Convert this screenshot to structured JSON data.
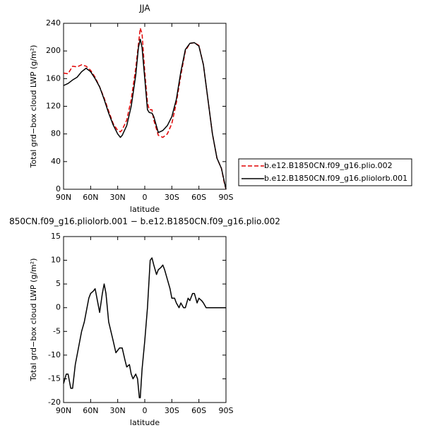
{
  "chart_data": [
    {
      "type": "line",
      "title": "JJA",
      "x_label": "latitude",
      "y_label": "Total grd−box cloud LWP (g/m²)",
      "x": [
        90,
        85,
        80,
        75,
        70,
        65,
        60,
        55,
        50,
        45,
        40,
        35,
        30,
        27,
        25,
        20,
        15,
        10,
        7,
        5,
        3,
        0,
        -3,
        -5,
        -8,
        -10,
        -15,
        -20,
        -25,
        -30,
        -35,
        -40,
        -45,
        -50,
        -55,
        -60,
        -65,
        -70,
        -75,
        -80,
        -85,
        -88,
        -90
      ],
      "series": [
        {
          "name": "b.e12.B1850CN.f09_g16.plio.002",
          "color": "#e00000",
          "dashed": true,
          "values": [
            168,
            167,
            178,
            177,
            180,
            178,
            172,
            162,
            148,
            132,
            113,
            95,
            85,
            83,
            86,
            100,
            130,
            175,
            210,
            233,
            225,
            170,
            125,
            115,
            115,
            100,
            78,
            75,
            80,
            95,
            125,
            165,
            200,
            211,
            212,
            208,
            180,
            130,
            80,
            45,
            30,
            10,
            0
          ]
        },
        {
          "name": "b.e12.B1850CN.f09_g16.pliolorb.001",
          "color": "#000000",
          "dashed": false,
          "values": [
            150,
            153,
            158,
            162,
            170,
            175,
            170,
            160,
            148,
            130,
            110,
            93,
            80,
            75,
            78,
            92,
            120,
            165,
            205,
            217,
            205,
            160,
            115,
            111,
            110,
            105,
            82,
            85,
            92,
            105,
            130,
            170,
            202,
            211,
            212,
            207,
            180,
            130,
            80,
            45,
            30,
            12,
            0
          ]
        }
      ],
      "xlim": [
        90,
        -90
      ],
      "xticks": [
        {
          "value": 90,
          "label": "90N"
        },
        {
          "value": 60,
          "label": "60N"
        },
        {
          "value": 30,
          "label": "30N"
        },
        0,
        {
          "value": -30,
          "label": "30S"
        },
        {
          "value": -60,
          "label": "60S"
        },
        {
          "value": -90,
          "label": "90S"
        }
      ],
      "ylim": [
        0,
        240
      ],
      "yticks": [
        0,
        40,
        80,
        120,
        160,
        200,
        240
      ],
      "legend": "right"
    },
    {
      "type": "line",
      "title": "850CN.f09_g16.pliolorb.001 − b.e12.B1850CN.f09_g16.plio.002",
      "x_label": "latitude",
      "y_label": "Total grd−box cloud LWP (g/m²)",
      "x": [
        90,
        87,
        85,
        82,
        80,
        77,
        75,
        70,
        67,
        65,
        62,
        60,
        57,
        55,
        52,
        50,
        47,
        45,
        43,
        40,
        35,
        32,
        28,
        25,
        22,
        20,
        17,
        15,
        13,
        10,
        8,
        6,
        5,
        3,
        0,
        -3,
        -6,
        -8,
        -10,
        -13,
        -15,
        -18,
        -20,
        -22,
        -25,
        -28,
        -30,
        -33,
        -35,
        -38,
        -40,
        -43,
        -45,
        -48,
        -50,
        -53,
        -55,
        -58,
        -60,
        -63,
        -65,
        -68,
        -70,
        -75,
        -90
      ],
      "series": [
        {
          "name": null,
          "color": "#000000",
          "dashed": false,
          "values": [
            -16,
            -14,
            -14,
            -17,
            -17,
            -12,
            -10,
            -5,
            -3,
            -1,
            2,
            3,
            3.5,
            4,
            1,
            -1,
            3,
            5,
            3,
            -3,
            -7,
            -9.5,
            -8.5,
            -8.5,
            -11,
            -12.5,
            -12,
            -14,
            -15,
            -14,
            -15,
            -19,
            -19,
            -13,
            -7,
            0,
            10,
            10.5,
            9,
            7,
            8,
            8.5,
            9,
            8,
            6,
            4,
            2,
            2,
            1,
            0,
            1,
            0,
            0,
            2,
            1.5,
            3,
            3,
            1,
            2,
            1.5,
            1,
            0,
            0,
            0,
            0
          ]
        }
      ],
      "xlim": [
        90,
        -90
      ],
      "xticks": [
        {
          "value": 90,
          "label": "90N"
        },
        {
          "value": 60,
          "label": "60N"
        },
        {
          "value": 30,
          "label": "30N"
        },
        0,
        {
          "value": -30,
          "label": "30S"
        },
        {
          "value": -60,
          "label": "60S"
        },
        {
          "value": -90,
          "label": "90S"
        }
      ],
      "ylim": [
        -20,
        15
      ],
      "yticks": [
        -20,
        -15,
        -10,
        -5,
        0,
        5,
        10,
        15
      ]
    }
  ]
}
